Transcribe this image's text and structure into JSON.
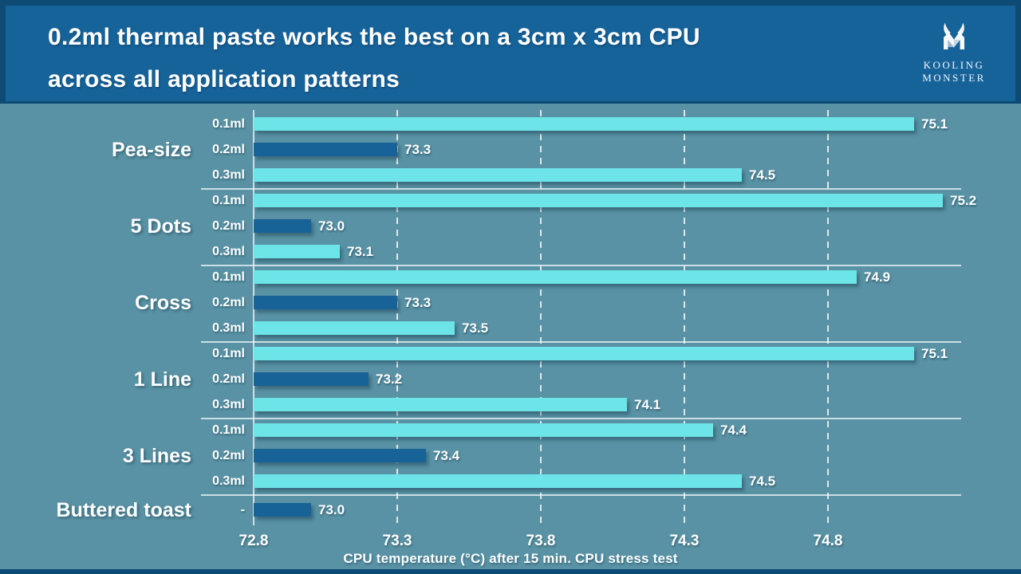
{
  "header": {
    "title_line1": "0.2ml thermal paste works the best on a 3cm x 3cm CPU",
    "title_line2": "across all application patterns",
    "logo_line1": "KOOLING",
    "logo_line2": "MONSTER"
  },
  "colors": {
    "frame_navy": "#0d4a74",
    "header_blue": "#16639a",
    "background_teal": "#5892a4",
    "bar_cyan": "#6ce4e8",
    "bar_dark_blue": "#176296",
    "gridline_white": "#ffffff",
    "text_white": "#ffffff"
  },
  "chart_data": {
    "type": "bar",
    "orientation": "horizontal",
    "title": "0.2ml thermal paste works the best on a 3cm x 3cm CPU across all application patterns",
    "xlabel": "CPU temperature (°C) after 15 min. CPU stress test",
    "xlim": [
      72.8,
      75.25
    ],
    "ticks": [
      72.8,
      73.3,
      73.8,
      74.3,
      74.8
    ],
    "tick_labels": [
      "72.8",
      "73.3",
      "73.8",
      "74.3",
      "74.8"
    ],
    "grid": "dashed-vertical",
    "legend": "none",
    "series_colors": {
      "0.1ml": "#6ce4e8",
      "0.2ml": "#176296",
      "0.3ml": "#6ce4e8",
      "-": "#176296"
    },
    "groups": [
      {
        "label": "Pea-size",
        "bars": [
          {
            "series": "0.1ml",
            "value": 75.1,
            "label": "75.1"
          },
          {
            "series": "0.2ml",
            "value": 73.3,
            "label": "73.3"
          },
          {
            "series": "0.3ml",
            "value": 74.5,
            "label": "74.5"
          }
        ]
      },
      {
        "label": "5 Dots",
        "bars": [
          {
            "series": "0.1ml",
            "value": 75.2,
            "label": "75.2"
          },
          {
            "series": "0.2ml",
            "value": 73.0,
            "label": "73.0"
          },
          {
            "series": "0.3ml",
            "value": 73.1,
            "label": "73.1"
          }
        ]
      },
      {
        "label": "Cross",
        "bars": [
          {
            "series": "0.1ml",
            "value": 74.9,
            "label": "74.9"
          },
          {
            "series": "0.2ml",
            "value": 73.3,
            "label": "73.3"
          },
          {
            "series": "0.3ml",
            "value": 73.5,
            "label": "73.5"
          }
        ]
      },
      {
        "label": "1 Line",
        "bars": [
          {
            "series": "0.1ml",
            "value": 75.1,
            "label": "75.1"
          },
          {
            "series": "0.2ml",
            "value": 73.2,
            "label": "73.2"
          },
          {
            "series": "0.3ml",
            "value": 74.1,
            "label": "74.1"
          }
        ]
      },
      {
        "label": "3 Lines",
        "bars": [
          {
            "series": "0.1ml",
            "value": 74.4,
            "label": "74.4"
          },
          {
            "series": "0.2ml",
            "value": 73.4,
            "label": "73.4"
          },
          {
            "series": "0.3ml",
            "value": 74.5,
            "label": "74.5"
          }
        ]
      },
      {
        "label": "Buttered toast",
        "bars": [
          {
            "series": "-",
            "value": 73.0,
            "label": "73.0"
          }
        ]
      }
    ]
  }
}
